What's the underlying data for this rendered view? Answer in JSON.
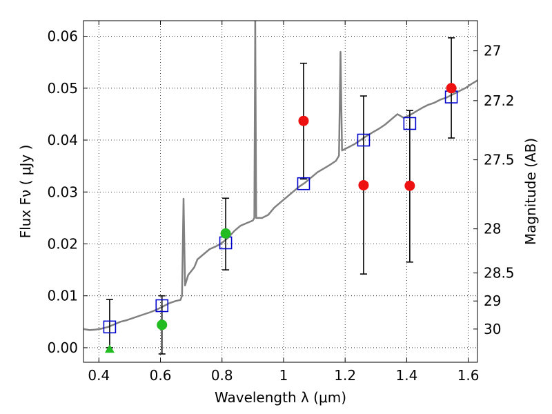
{
  "chart_data": {
    "type": "scatter",
    "xlabel": "Wavelength  λ (μm)",
    "ylabel": "Flux  Fν  ( μJy )",
    "ylabel_right": "Magnitude (AB)",
    "xlim": [
      0.35,
      1.63
    ],
    "ylim": [
      -0.0028,
      0.063
    ],
    "x_ticks": [
      0.4,
      0.6,
      0.8,
      1.0,
      1.2,
      1.4,
      1.6
    ],
    "x_tick_labels": [
      "0.4",
      "0.6",
      "0.8",
      "1",
      "1.2",
      "1.4",
      "1.6"
    ],
    "y_ticks": [
      0.0,
      0.01,
      0.02,
      0.03,
      0.04,
      0.05,
      0.06
    ],
    "y_tick_labels": [
      "0.00",
      "0.01",
      "0.02",
      "0.03",
      "0.04",
      "0.05",
      "0.06"
    ],
    "right_ticks": [
      {
        "flux": 0.0572,
        "label": "27"
      },
      {
        "flux": 0.0476,
        "label": "27.2"
      },
      {
        "flux": 0.0362,
        "label": "27.5"
      },
      {
        "flux": 0.0229,
        "label": "28"
      },
      {
        "flux": 0.0144,
        "label": "28.5"
      },
      {
        "flux": 0.009,
        "label": "29"
      },
      {
        "flux": 0.0036,
        "label": "30"
      }
    ],
    "grid": true,
    "colors": {
      "spectrum": "#808080",
      "model": "#0000cc",
      "green": "#22bb22",
      "red": "#ee1111",
      "errorbar": "#000000"
    },
    "series": [
      {
        "name": "spectrum",
        "style": "line",
        "points": [
          [
            0.35,
            0.0036
          ],
          [
            0.37,
            0.0034
          ],
          [
            0.39,
            0.0035
          ],
          [
            0.41,
            0.0037
          ],
          [
            0.43,
            0.004
          ],
          [
            0.45,
            0.0045
          ],
          [
            0.47,
            0.005
          ],
          [
            0.49,
            0.0053
          ],
          [
            0.51,
            0.0057
          ],
          [
            0.53,
            0.0061
          ],
          [
            0.55,
            0.0065
          ],
          [
            0.57,
            0.0069
          ],
          [
            0.59,
            0.0074
          ],
          [
            0.61,
            0.008
          ],
          [
            0.63,
            0.0086
          ],
          [
            0.65,
            0.009
          ],
          [
            0.665,
            0.0092
          ],
          [
            0.67,
            0.01
          ],
          [
            0.675,
            0.0287
          ],
          [
            0.68,
            0.012
          ],
          [
            0.69,
            0.014
          ],
          [
            0.71,
            0.0155
          ],
          [
            0.72,
            0.017
          ],
          [
            0.74,
            0.018
          ],
          [
            0.76,
            0.019
          ],
          [
            0.78,
            0.0195
          ],
          [
            0.8,
            0.0202
          ],
          [
            0.82,
            0.0212
          ],
          [
            0.84,
            0.0225
          ],
          [
            0.86,
            0.0235
          ],
          [
            0.88,
            0.024
          ],
          [
            0.9,
            0.0245
          ],
          [
            0.905,
            0.025
          ],
          [
            0.908,
            0.063
          ],
          [
            0.911,
            0.025
          ],
          [
            0.93,
            0.025
          ],
          [
            0.95,
            0.0256
          ],
          [
            0.97,
            0.027
          ],
          [
            0.99,
            0.028
          ],
          [
            1.01,
            0.029
          ],
          [
            1.03,
            0.03
          ],
          [
            1.05,
            0.031
          ],
          [
            1.07,
            0.0318
          ],
          [
            1.09,
            0.0328
          ],
          [
            1.11,
            0.0338
          ],
          [
            1.13,
            0.0345
          ],
          [
            1.15,
            0.0352
          ],
          [
            1.17,
            0.036
          ],
          [
            1.18,
            0.037
          ],
          [
            1.185,
            0.057
          ],
          [
            1.19,
            0.038
          ],
          [
            1.21,
            0.0386
          ],
          [
            1.23,
            0.0392
          ],
          [
            1.25,
            0.04
          ],
          [
            1.27,
            0.0408
          ],
          [
            1.29,
            0.0415
          ],
          [
            1.31,
            0.0422
          ],
          [
            1.33,
            0.043
          ],
          [
            1.35,
            0.044
          ],
          [
            1.37,
            0.045
          ],
          [
            1.39,
            0.0443
          ],
          [
            1.41,
            0.0448
          ],
          [
            1.43,
            0.0455
          ],
          [
            1.45,
            0.0462
          ],
          [
            1.47,
            0.0468
          ],
          [
            1.49,
            0.0472
          ],
          [
            1.51,
            0.0478
          ],
          [
            1.53,
            0.0482
          ],
          [
            1.55,
            0.0488
          ],
          [
            1.57,
            0.0494
          ],
          [
            1.59,
            0.05
          ],
          [
            1.61,
            0.0508
          ],
          [
            1.63,
            0.0515
          ]
        ]
      },
      {
        "name": "model photometry",
        "style": "open-square",
        "color": "#0000cc",
        "points": [
          [
            0.435,
            0.004
          ],
          [
            0.605,
            0.0081
          ],
          [
            0.812,
            0.0202
          ],
          [
            1.065,
            0.0316
          ],
          [
            1.26,
            0.04
          ],
          [
            1.41,
            0.0432
          ],
          [
            1.545,
            0.0483
          ]
        ]
      },
      {
        "name": "observed (green)",
        "style": "circle",
        "color": "#22bb22",
        "points": [
          [
            0.605,
            0.0044
          ],
          [
            0.812,
            0.022
          ]
        ]
      },
      {
        "name": "observed (red)",
        "style": "circle",
        "color": "#ee1111",
        "points": [
          [
            1.065,
            0.0437
          ],
          [
            1.26,
            0.0313
          ],
          [
            1.41,
            0.0312
          ],
          [
            1.545,
            0.05
          ]
        ]
      },
      {
        "name": "upper limit",
        "style": "triangle",
        "color": "#22bb22",
        "points": [
          [
            0.435,
            -0.0003
          ]
        ]
      }
    ],
    "errorbars": [
      {
        "x": 0.435,
        "low": 0.0,
        "high": 0.0093
      },
      {
        "x": 0.605,
        "low": -0.0012,
        "high": 0.01
      },
      {
        "x": 0.812,
        "low": 0.015,
        "high": 0.0288
      },
      {
        "x": 1.065,
        "low": 0.0325,
        "high": 0.0548
      },
      {
        "x": 1.26,
        "low": 0.0142,
        "high": 0.0485
      },
      {
        "x": 1.41,
        "low": 0.0165,
        "high": 0.0457
      },
      {
        "x": 1.545,
        "low": 0.0404,
        "high": 0.0597
      }
    ]
  }
}
